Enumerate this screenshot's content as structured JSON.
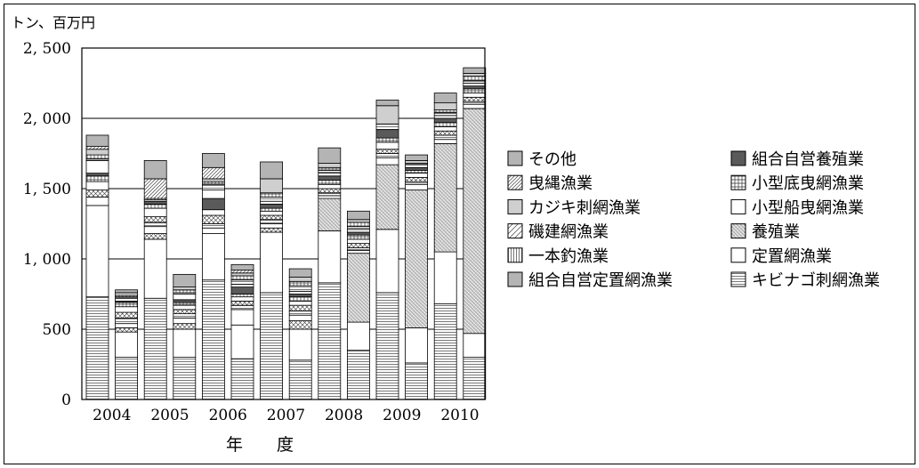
{
  "chart_data": {
    "type": "bar",
    "stacked": true,
    "unit_label": "トン、百万円",
    "xlabel": "年　　度",
    "ylim": [
      0,
      2500
    ],
    "yticks": [
      0,
      500,
      1000,
      1500,
      2000,
      2500
    ],
    "ytick_labels": [
      "0",
      "500",
      "1, 000",
      "1, 500",
      "2, 000",
      "2, 500"
    ],
    "grid": true,
    "legend_position": "right",
    "categories": [
      "2004",
      "2005",
      "2006",
      "2007",
      "2008",
      "2009",
      "2010"
    ],
    "bars": [
      {
        "category": "2004",
        "sequence": 1,
        "label": "2004",
        "values": [
          730,
          0,
          650,
          0,
          0,
          60,
          0,
          50,
          60,
          40,
          20,
          90,
          10,
          30,
          40,
          20,
          80
        ]
      },
      {
        "category": "2004",
        "sequence": 2,
        "label": "",
        "values": [
          300,
          0,
          180,
          30,
          0,
          30,
          40,
          40,
          40,
          30,
          10,
          20,
          10,
          10,
          20,
          0,
          20
        ]
      },
      {
        "category": "2005",
        "sequence": 1,
        "label": "2005",
        "values": [
          720,
          0,
          420,
          40,
          0,
          50,
          30,
          40,
          60,
          30,
          20,
          0,
          10,
          10,
          0,
          140,
          130
        ]
      },
      {
        "category": "2005",
        "sequence": 2,
        "label": "",
        "values": [
          300,
          0,
          200,
          40,
          0,
          40,
          30,
          30,
          30,
          20,
          20,
          40,
          10,
          20,
          20,
          0,
          90
        ]
      },
      {
        "category": "2006",
        "sequence": 1,
        "label": "2006",
        "values": [
          850,
          0,
          330,
          0,
          0,
          40,
          30,
          60,
          40,
          0,
          80,
          60,
          40,
          20,
          20,
          80,
          100
        ]
      },
      {
        "category": "2006",
        "sequence": 2,
        "label": "",
        "values": [
          290,
          0,
          240,
          0,
          0,
          110,
          30,
          30,
          30,
          20,
          50,
          20,
          30,
          30,
          20,
          20,
          40
        ]
      },
      {
        "category": "2007",
        "sequence": 1,
        "label": "2007",
        "values": [
          760,
          0,
          430,
          30,
          0,
          30,
          30,
          30,
          30,
          20,
          30,
          20,
          30,
          30,
          100,
          0,
          120
        ]
      },
      {
        "category": "2007",
        "sequence": 2,
        "label": "",
        "values": [
          280,
          0,
          220,
          60,
          0,
          40,
          30,
          40,
          30,
          30,
          20,
          20,
          40,
          30,
          30,
          0,
          60
        ]
      },
      {
        "category": "2008",
        "sequence": 1,
        "label": "2008",
        "values": [
          830,
          0,
          370,
          0,
          230,
          20,
          20,
          30,
          30,
          30,
          30,
          20,
          20,
          20,
          30,
          0,
          110
        ]
      },
      {
        "category": "2008",
        "sequence": 2,
        "label": "",
        "values": [
          350,
          0,
          200,
          0,
          490,
          20,
          20,
          30,
          30,
          30,
          20,
          20,
          20,
          30,
          20,
          0,
          60
        ]
      },
      {
        "category": "2009",
        "sequence": 1,
        "label": "2009",
        "values": [
          760,
          0,
          450,
          0,
          460,
          50,
          30,
          30,
          50,
          30,
          60,
          0,
          40,
          0,
          130,
          0,
          40
        ]
      },
      {
        "category": "2009",
        "sequence": 2,
        "label": "",
        "values": [
          260,
          0,
          250,
          0,
          980,
          40,
          20,
          30,
          30,
          20,
          20,
          20,
          10,
          0,
          20,
          0,
          40
        ]
      },
      {
        "category": "2010",
        "sequence": 1,
        "label": "2010",
        "values": [
          680,
          0,
          370,
          0,
          770,
          30,
          30,
          30,
          30,
          30,
          30,
          20,
          20,
          20,
          50,
          0,
          70
        ]
      },
      {
        "category": "2010",
        "sequence": 2,
        "label": "",
        "values": [
          300,
          0,
          170,
          0,
          1600,
          30,
          20,
          30,
          30,
          30,
          20,
          20,
          20,
          30,
          20,
          0,
          40
        ]
      }
    ],
    "segment_patterns": [
      "hlines",
      "white",
      "white",
      "cross",
      "dots",
      "white",
      "hlines",
      "cross",
      "white",
      "grid",
      "dark",
      "white",
      "hlines",
      "grid",
      "lightgray",
      "diag",
      "gray"
    ],
    "legend": [
      {
        "label": "その他",
        "pattern": "gray"
      },
      {
        "label": "組合自営養殖業",
        "pattern": "dark"
      },
      {
        "label": "曳縄漁業",
        "pattern": "diag"
      },
      {
        "label": "小型底曳網漁業",
        "pattern": "grid"
      },
      {
        "label": "カジキ刺網漁業",
        "pattern": "lightgray"
      },
      {
        "label": "小型船曳網漁業",
        "pattern": "white"
      },
      {
        "label": "磯建網漁業",
        "pattern": "diagwide"
      },
      {
        "label": "養殖業",
        "pattern": "dots"
      },
      {
        "label": "一本釣漁業",
        "pattern": "vlines"
      },
      {
        "label": "定置網漁業",
        "pattern": "white"
      },
      {
        "label": "組合自営定置網漁業",
        "pattern": "gray"
      },
      {
        "label": "キビナゴ刺網漁業",
        "pattern": "hlines"
      }
    ]
  }
}
